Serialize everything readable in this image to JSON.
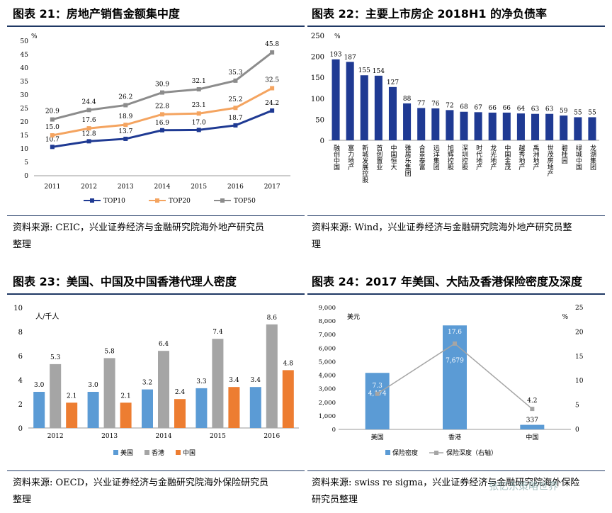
{
  "panels": [
    {
      "title": "图表 21：房地产销售金额集中度",
      "source_line1": "资料来源: CEIC，兴业证券经济与金融研究院海外地产研究员",
      "source_line2": "整理"
    },
    {
      "title": "图表 22：主要上市房企 2018H1 的净负债率",
      "source_line1": "资料来源: Wind，兴业证券经济与金融研究院海外地产研究员整",
      "source_line2": "理"
    },
    {
      "title": "图表 23：美国、中国及中国香港代理人密度",
      "source_line1": "资料来源: OECD，兴业证券经济与金融研究院海外保险研究员",
      "source_line2": "整理"
    },
    {
      "title": "图表 24：2017 年美国、大陆及香港保险密度及深度",
      "source_line1": "资料来源: swiss re sigma，兴业证券经济与金融研究院海外保险",
      "source_line2": "研究员整理"
    }
  ],
  "watermark": "张忆东策略世界",
  "chart_data": [
    {
      "type": "line",
      "title": "图表 21：房地产销售金额集中度",
      "unit": "%",
      "categories": [
        "2011",
        "2012",
        "2013",
        "2014",
        "2015",
        "2016",
        "2017"
      ],
      "ylim": [
        0,
        50
      ],
      "yticks": [
        0,
        5,
        10,
        15,
        20,
        25,
        30,
        35,
        40,
        45,
        50
      ],
      "series": [
        {
          "name": "TOP10",
          "color": "#1f3a93",
          "values": [
            10.7,
            12.8,
            13.7,
            16.9,
            17.0,
            18.7,
            24.2
          ]
        },
        {
          "name": "TOP20",
          "color": "#f4a460",
          "values": [
            15.0,
            17.6,
            18.9,
            22.8,
            23.1,
            25.2,
            32.5
          ]
        },
        {
          "name": "TOP50",
          "color": "#8c8c8c",
          "values": [
            20.9,
            24.4,
            26.2,
            30.9,
            32.1,
            35.3,
            45.8
          ]
        }
      ]
    },
    {
      "type": "bar",
      "title": "图表 22：主要上市房企 2018H1 的净负债率",
      "unit": "%",
      "ylim": [
        0,
        250
      ],
      "yticks": [
        0,
        50,
        100,
        150,
        200,
        250
      ],
      "color": "#1f3a93",
      "categories": [
        "融创中国",
        "富力地产",
        "新城发展控股",
        "首创置业",
        "中国恒大",
        "雅居乐集团",
        "合景泰富",
        "远洋集团",
        "旭辉控股",
        "深圳控股",
        "时代地产",
        "龙光地产",
        "中国金茂",
        "越秀地产",
        "禹洲地产",
        "世茂房地产",
        "碧桂园",
        "绿城中国",
        "龙湖集团"
      ],
      "values": [
        193,
        187,
        155,
        154,
        127,
        88,
        77,
        76,
        72,
        68,
        67,
        66,
        66,
        64,
        63,
        63,
        59,
        55,
        55
      ]
    },
    {
      "type": "bar",
      "title": "图表 23：美国、中国及中国香港代理人密度",
      "unit": "人/千人",
      "ylim": [
        0,
        10
      ],
      "yticks": [
        0,
        2,
        4,
        6,
        8,
        10
      ],
      "categories": [
        "2012",
        "2013",
        "2014",
        "2015",
        "2016"
      ],
      "series": [
        {
          "name": "美国",
          "color": "#5b9bd5",
          "values": [
            3.0,
            3.0,
            3.2,
            3.3,
            3.4
          ]
        },
        {
          "name": "香港",
          "color": "#a5a5a5",
          "values": [
            5.3,
            5.8,
            6.4,
            7.4,
            8.6
          ]
        },
        {
          "name": "中国",
          "color": "#ed7d31",
          "values": [
            2.1,
            2.1,
            2.4,
            3.4,
            4.8
          ]
        }
      ]
    },
    {
      "type": "bar",
      "title": "图表 24：2017 年美国、大陆及香港保险密度及深度",
      "left_unit": "美元",
      "right_unit": "%",
      "categories": [
        "美国",
        "香港",
        "中国"
      ],
      "ylim_left": [
        0,
        9000
      ],
      "yticks_left": [
        "0",
        "1,000",
        "2,000",
        "3,000",
        "4,000",
        "5,000",
        "6,000",
        "7,000",
        "8,000",
        "9,000"
      ],
      "ylim_right": [
        0,
        25
      ],
      "yticks_right": [
        0,
        5,
        10,
        15,
        20,
        25
      ],
      "series": [
        {
          "name": "保险密度",
          "axis": "left",
          "type": "bar",
          "color": "#5b9bd5",
          "values": [
            4174,
            7679,
            337
          ],
          "labels": [
            "4,174",
            "7,679",
            "337"
          ]
        },
        {
          "name": "保险深度（右轴）",
          "axis": "right",
          "type": "line",
          "color": "#a5a5a5",
          "values": [
            7.3,
            17.6,
            4.2
          ]
        }
      ]
    }
  ]
}
